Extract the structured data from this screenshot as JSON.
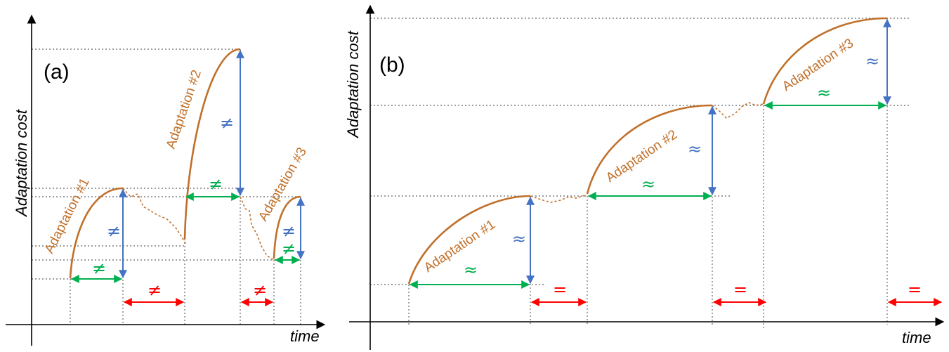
{
  "panels": {
    "a": {
      "label": "(a)",
      "y_axis_label": "Adaptation cost",
      "x_axis_label": "time",
      "adaptations": [
        "Adaptation #1",
        "Adaptation #2",
        "Adaptation #3"
      ],
      "cost_symbols": [
        "≠",
        "≠",
        "≠"
      ],
      "duration_symbols": [
        "≠",
        "≠",
        "≠"
      ],
      "gap_symbols": [
        "≠",
        "≠"
      ]
    },
    "b": {
      "label": "(b)",
      "y_axis_label": "Adaptation cost",
      "x_axis_label": "time",
      "adaptations": [
        "Adaptation #1",
        "Adaptation #2",
        "Adaptation #3"
      ],
      "cost_symbols": [
        "≈",
        "≈",
        "≈"
      ],
      "duration_symbols": [
        "≈",
        "≈",
        "≈"
      ],
      "gap_symbols": [
        "=",
        "=",
        "="
      ]
    }
  },
  "colors": {
    "curve": "#c0702a",
    "cost_arrow": "#4472c4",
    "duration_arrow": "#00b050",
    "gap_arrow": "#ff0000",
    "guide": "#7f7f7f"
  }
}
